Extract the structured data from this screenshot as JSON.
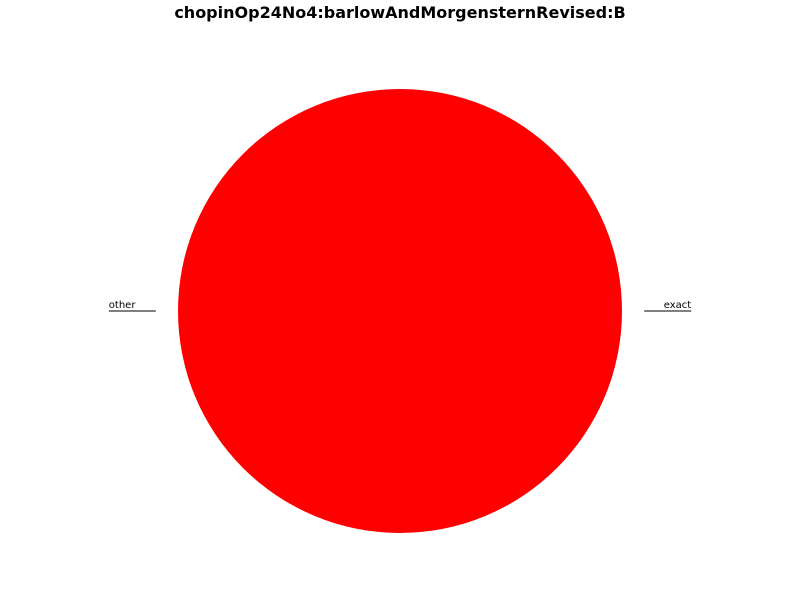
{
  "chart_data": {
    "type": "pie",
    "title": "chopinOp24No4:barlowAndMorgensternRevised:B",
    "slices": [
      {
        "label": "exact",
        "value": 0.0
      },
      {
        "label": "other",
        "value": 100.0
      }
    ],
    "colors": [
      "#ff0000",
      "#ff0000"
    ],
    "legend": "none"
  }
}
